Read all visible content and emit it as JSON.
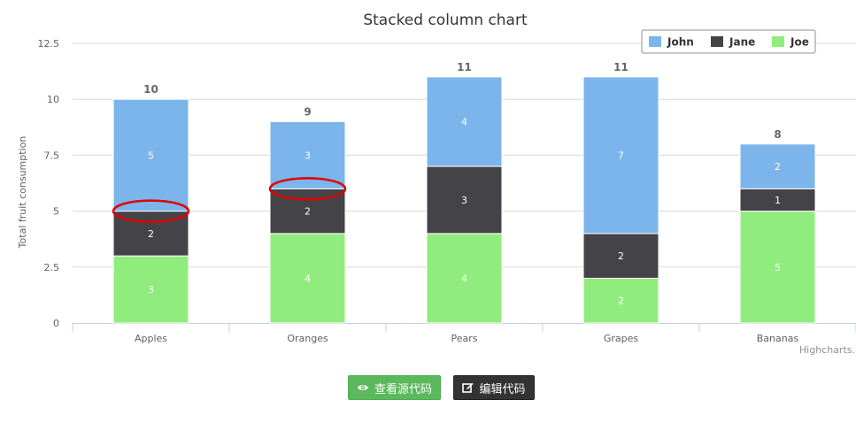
{
  "chart_data": {
    "type": "bar",
    "stacked": true,
    "title": "Stacked column chart",
    "ylabel": "Total fruit consumption",
    "xlabel": "",
    "ylim": [
      0,
      12.5
    ],
    "yticks": [
      "0",
      "2.5",
      "5",
      "7.5",
      "10",
      "12.5"
    ],
    "categories": [
      "Apples",
      "Oranges",
      "Pears",
      "Grapes",
      "Bananas"
    ],
    "series": [
      {
        "name": "Joe",
        "color": "#90ed7d",
        "values": [
          3,
          4,
          4,
          2,
          5
        ]
      },
      {
        "name": "Jane",
        "color": "#434348",
        "values": [
          2,
          2,
          3,
          2,
          1
        ]
      },
      {
        "name": "John",
        "color": "#7cb5ec",
        "values": [
          5,
          3,
          4,
          7,
          2
        ]
      }
    ],
    "totals": [
      10,
      9,
      11,
      11,
      8
    ],
    "legend": {
      "position": "top-right",
      "order": [
        "John",
        "Jane",
        "Joe"
      ]
    },
    "grid": true,
    "highlights": [
      {
        "category": "Apples",
        "y": 5,
        "color": "#e00000"
      },
      {
        "category": "Oranges",
        "y": 6,
        "color": "#e00000"
      }
    ],
    "credits": "Highcharts."
  },
  "buttons": {
    "view_source": "查看源代码",
    "edit_code": "编辑代码"
  }
}
